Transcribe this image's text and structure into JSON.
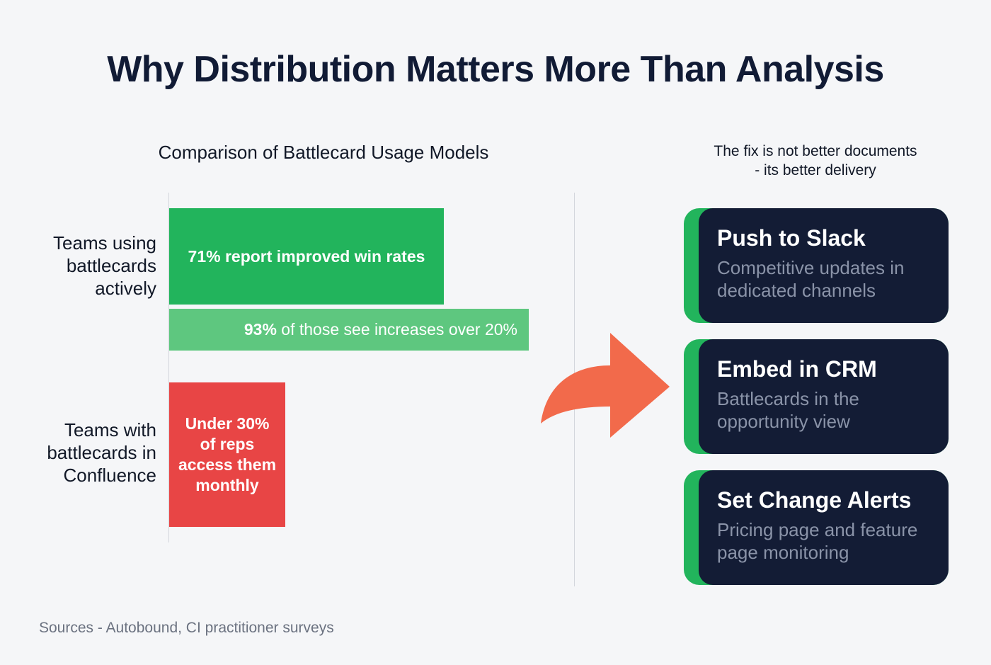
{
  "title": "Why Distribution Matters More Than Analysis",
  "chart_data": {
    "type": "bar",
    "orientation": "horizontal",
    "title": "Comparison of Battlecard Usage Models",
    "categories": [
      "Teams using battlecards actively",
      "Teams with battlecards in Confluence"
    ],
    "bars": [
      {
        "category": "Teams using battlecards actively",
        "label": "71% report improved win rates",
        "value": 71,
        "color": "#22b45c"
      },
      {
        "category": "Teams using battlecards actively",
        "label_bold": "93%",
        "label_rest": " of those see increases over 20%",
        "value": 93,
        "color": "#5ec77f"
      },
      {
        "category": "Teams with battlecards in Confluence",
        "label": "Under 30% of reps access them monthly",
        "value": 30,
        "color": "#e84545"
      }
    ],
    "xlim": [
      0,
      100
    ],
    "xlabel": "",
    "ylabel": "",
    "grid": false
  },
  "labels": {
    "active": "Teams using battlecards actively",
    "confluence": "Teams with battlecards in Confluence"
  },
  "right_heading": {
    "line1": "The fix is not better documents",
    "line2": "- its better delivery"
  },
  "cards": [
    {
      "title": "Push to Slack",
      "desc": "Competitive updates in dedicated channels"
    },
    {
      "title": "Embed in CRM",
      "desc": "Battlecards in the opportunity view"
    },
    {
      "title": "Set Change Alerts",
      "desc": "Pricing page and feature page monitoring"
    }
  ],
  "colors": {
    "green": "#22b45c",
    "light_green": "#5ec77f",
    "red": "#e84545",
    "navy": "#131c35",
    "arrow": "#f26a4b"
  },
  "sources": "Sources - Autobound, CI practitioner surveys"
}
